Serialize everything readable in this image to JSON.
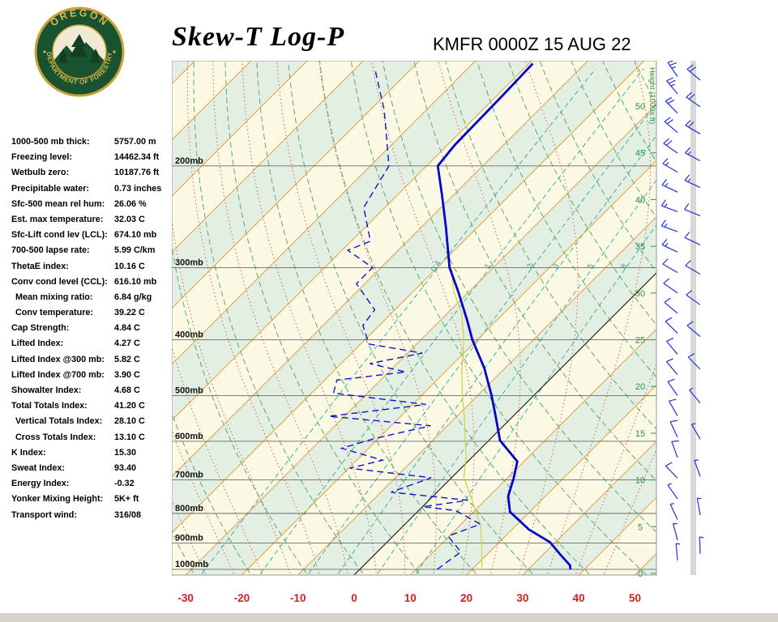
{
  "header": {
    "title": "Skew-T Log-P",
    "station_line": "KMFR 0000Z 15 AUG 22",
    "logo_top": "OREGON",
    "logo_bottom": "DEPARTMENT OF FORESTRY"
  },
  "indices": [
    {
      "label": "1000-500 mb thick:",
      "value": "5757.00 m",
      "indent": false
    },
    {
      "label": "Freezing level:",
      "value": "14462.34 ft",
      "indent": false
    },
    {
      "label": "Wetbulb zero:",
      "value": "10187.76 ft",
      "indent": false
    },
    {
      "label": "Precipitable water:",
      "value": "0.73 inches",
      "indent": false
    },
    {
      "label": "Sfc-500 mean rel hum:",
      "value": "26.06 %",
      "indent": false
    },
    {
      "label": "Est. max temperature:",
      "value": "32.03 C",
      "indent": false
    },
    {
      "label": "Sfc-Lift cond lev (LCL):",
      "value": "674.10 mb",
      "indent": false
    },
    {
      "label": "700-500 lapse rate:",
      "value": "5.99 C/km",
      "indent": false
    },
    {
      "label": "ThetaE index:",
      "value": "10.16 C",
      "indent": false
    },
    {
      "label": "Conv cond level (CCL):",
      "value": "616.10 mb",
      "indent": false
    },
    {
      "label": "Mean mixing ratio:",
      "value": "6.84 g/kg",
      "indent": true
    },
    {
      "label": "Conv temperature:",
      "value": "39.22 C",
      "indent": true
    },
    {
      "label": "Cap Strength:",
      "value": "4.84 C",
      "indent": false
    },
    {
      "label": "Lifted Index:",
      "value": "4.27 C",
      "indent": false
    },
    {
      "label": "Lifted Index @300 mb:",
      "value": "5.82 C",
      "indent": false
    },
    {
      "label": "Lifted Index @700 mb:",
      "value": "3.90 C",
      "indent": false
    },
    {
      "label": "Showalter Index:",
      "value": "4.68 C",
      "indent": false
    },
    {
      "label": "Total Totals Index:",
      "value": "41.20 C",
      "indent": false
    },
    {
      "label": "Vertical Totals Index:",
      "value": "28.10 C",
      "indent": true
    },
    {
      "label": "Cross Totals Index:",
      "value": "13.10 C",
      "indent": true
    },
    {
      "label": "K Index:",
      "value": "15.30",
      "indent": false
    },
    {
      "label": "Sweat Index:",
      "value": "93.40",
      "indent": false
    },
    {
      "label": "Energy Index:",
      "value": "-0.32",
      "indent": false
    },
    {
      "label": "Yonker Mixing Height:",
      "value": "5K+ ft",
      "indent": false
    },
    {
      "label": "Transport wind:",
      "value": "316/08",
      "indent": false
    }
  ],
  "chart_data": {
    "type": "line",
    "title": "Skew-T Log-P",
    "station": "KMFR",
    "valid_time": "0000Z 15 AUG 22",
    "x_axis_unit": "C",
    "x_ticks": [
      -30,
      -20,
      -10,
      0,
      10,
      20,
      30,
      40,
      50
    ],
    "pressure_levels": [
      200,
      300,
      400,
      500,
      600,
      700,
      800,
      900,
      1000
    ],
    "height_labels": [
      50,
      45,
      40,
      35,
      30,
      25,
      20,
      15,
      10,
      5,
      0
    ],
    "right_axis_label": "Height (1000s ft)",
    "mixing_ratio_labels": [
      0.4,
      1,
      2,
      3,
      5,
      8
    ],
    "isotherm_step_c": 10,
    "colors": {
      "band_cream": "#fbf8e4",
      "band_green": "#e4efe3",
      "isotherm": "#e39f3e",
      "zero_isotherm": "#333333",
      "dry_adiabat": "#4aa55c",
      "moist_adiabat": "#cc4433",
      "mixing_ratio": "#2fa89e",
      "pressure_line": "#555555",
      "axis_label_red": "#cc2222",
      "height_label_green": "#2e8f4e",
      "wind_barb": "#2233cc"
    },
    "series": [
      {
        "name": "wetbulb",
        "color": "#d4d442",
        "width": 1.3,
        "dash": "",
        "points": [
          [
            995,
            21.5
          ],
          [
            900,
            17.0
          ],
          [
            845,
            14.0
          ],
          [
            750,
            7.0
          ],
          [
            694,
            2.2
          ],
          [
            640,
            -1.0
          ],
          [
            598,
            -4.2
          ],
          [
            545,
            -8.5
          ],
          [
            500,
            -12.7
          ],
          [
            450,
            -17.5
          ],
          [
            400,
            -22.4
          ],
          [
            360,
            -27.5
          ],
          [
            330,
            -32.8
          ],
          [
            300,
            -37.4
          ]
        ]
      },
      {
        "name": "dewpoint",
        "color": "#1111cc",
        "width": 1.4,
        "dash": "8,5",
        "points": [
          [
            1000,
            13.8
          ],
          [
            979,
            14.1
          ],
          [
            933,
            14.9
          ],
          [
            876,
            9.8
          ],
          [
            835,
            13.4
          ],
          [
            791,
            6.6
          ],
          [
            779,
            0.1
          ],
          [
            759,
            6.9
          ],
          [
            735,
            -8.2
          ],
          [
            694,
            -3.6
          ],
          [
            668,
            -19.8
          ],
          [
            647,
            -15.4
          ],
          [
            617,
            -24.8
          ],
          [
            594,
            -20.8
          ],
          [
            564,
            -13.0
          ],
          [
            543,
            -32.8
          ],
          [
            518,
            -17.6
          ],
          [
            495,
            -36.1
          ],
          [
            470,
            -37.8
          ],
          [
            455,
            -27.0
          ],
          [
            440,
            -34.9
          ],
          [
            422,
            -27.4
          ],
          [
            407,
            -38.5
          ],
          [
            378,
            -42.9
          ],
          [
            355,
            -43.6
          ],
          [
            320,
            -51.5
          ],
          [
            300,
            -51.5
          ],
          [
            280,
            -59.0
          ],
          [
            270,
            -56.6
          ],
          [
            236,
            -63.8
          ],
          [
            200,
            -66.7
          ],
          [
            160,
            -77.5
          ],
          [
            135,
            -86.8
          ]
        ]
      },
      {
        "name": "temperature",
        "color": "#0000cc",
        "width": 2.8,
        "dash": "",
        "points": [
          [
            1000,
            37.5
          ],
          [
            984,
            36.7
          ],
          [
            942,
            33.0
          ],
          [
            897,
            29.0
          ],
          [
            853,
            23.0
          ],
          [
            795,
            16.5
          ],
          [
            747,
            13.4
          ],
          [
            694,
            11.1
          ],
          [
            650,
            8.8
          ],
          [
            598,
            2.0
          ],
          [
            545,
            -2.9
          ],
          [
            500,
            -7.5
          ],
          [
            448,
            -13.7
          ],
          [
            400,
            -20.9
          ],
          [
            370,
            -25.3
          ],
          [
            330,
            -32.0
          ],
          [
            300,
            -37.8
          ],
          [
            255,
            -45.7
          ],
          [
            224,
            -52.2
          ],
          [
            200,
            -58.0
          ],
          [
            184,
            -58.7
          ],
          [
            151,
            -59.0
          ],
          [
            133,
            -59.3
          ]
        ]
      }
    ],
    "winds": [
      {
        "p": 140,
        "dir": 325,
        "spd": 25
      },
      {
        "p": 150,
        "dir": 320,
        "spd": 25
      },
      {
        "p": 162,
        "dir": 315,
        "spd": 20
      },
      {
        "p": 175,
        "dir": 310,
        "spd": 20
      },
      {
        "p": 190,
        "dir": 305,
        "spd": 20
      },
      {
        "p": 205,
        "dir": 300,
        "spd": 15
      },
      {
        "p": 222,
        "dir": 295,
        "spd": 15
      },
      {
        "p": 240,
        "dir": 290,
        "spd": 15
      },
      {
        "p": 260,
        "dir": 290,
        "spd": 15
      },
      {
        "p": 282,
        "dir": 295,
        "spd": 15
      },
      {
        "p": 306,
        "dir": 300,
        "spd": 10
      },
      {
        "p": 332,
        "dir": 305,
        "spd": 10
      },
      {
        "p": 360,
        "dir": 310,
        "spd": 10
      },
      {
        "p": 390,
        "dir": 315,
        "spd": 10
      },
      {
        "p": 424,
        "dir": 320,
        "spd": 10
      },
      {
        "p": 460,
        "dir": 320,
        "spd": 10
      },
      {
        "p": 500,
        "dir": 325,
        "spd": 10
      },
      {
        "p": 542,
        "dir": 330,
        "spd": 8
      },
      {
        "p": 590,
        "dir": 335,
        "spd": 8
      },
      {
        "p": 640,
        "dir": 340,
        "spd": 8
      },
      {
        "p": 695,
        "dir": 316,
        "spd": 8
      },
      {
        "p": 755,
        "dir": 325,
        "spd": 6
      },
      {
        "p": 820,
        "dir": 335,
        "spd": 5
      },
      {
        "p": 890,
        "dir": 345,
        "spd": 5
      },
      {
        "p": 965,
        "dir": 355,
        "spd": 4
      }
    ],
    "winds_right": [
      {
        "p": 142,
        "dir": 310,
        "spd": 20
      },
      {
        "p": 158,
        "dir": 305,
        "spd": 20
      },
      {
        "p": 176,
        "dir": 300,
        "spd": 18
      },
      {
        "p": 196,
        "dir": 298,
        "spd": 15
      },
      {
        "p": 218,
        "dir": 295,
        "spd": 15
      },
      {
        "p": 244,
        "dir": 292,
        "spd": 12
      },
      {
        "p": 274,
        "dir": 295,
        "spd": 12
      },
      {
        "p": 308,
        "dir": 300,
        "spd": 10
      },
      {
        "p": 348,
        "dir": 305,
        "spd": 10
      },
      {
        "p": 395,
        "dir": 310,
        "spd": 8
      },
      {
        "p": 450,
        "dir": 315,
        "spd": 8
      },
      {
        "p": 515,
        "dir": 320,
        "spd": 6
      },
      {
        "p": 595,
        "dir": 330,
        "spd": 5
      },
      {
        "p": 690,
        "dir": 340,
        "spd": 5
      },
      {
        "p": 805,
        "dir": 350,
        "spd": 4
      },
      {
        "p": 940,
        "dir": 358,
        "spd": 3
      }
    ]
  }
}
